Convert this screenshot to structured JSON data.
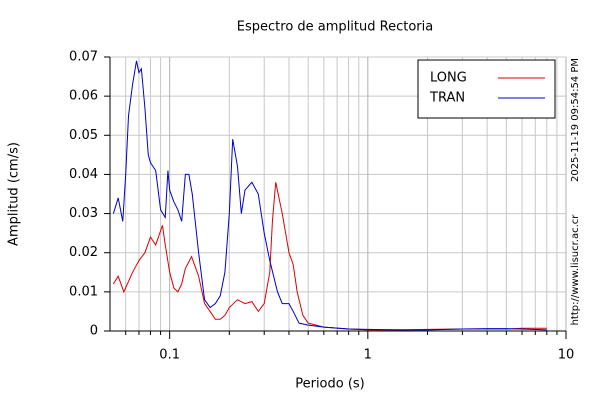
{
  "chart_data": {
    "type": "line",
    "title": "Espectro de amplitud Rectoria",
    "xlabel": "Periodo (s)",
    "ylabel": "Amplitud (cm/s)",
    "xlog": true,
    "grid": true,
    "minor_grid": true,
    "legend": "upper right",
    "xlim": [
      0.05,
      10
    ],
    "xticks": [
      0.1,
      1,
      10
    ],
    "ylim": [
      0,
      0.07
    ],
    "yticks": [
      0,
      0.01,
      0.02,
      0.03,
      0.04,
      0.05,
      0.06,
      0.07
    ],
    "annotations": [
      "2025-11-19 09:54:54 PM",
      "http://www.lisucr.ac.cr"
    ],
    "series": [
      {
        "name": "LONG",
        "color": "#dd0000",
        "x": [
          0.052,
          0.055,
          0.0587,
          0.065,
          0.07,
          0.075,
          0.08,
          0.085,
          0.092,
          0.095,
          0.1,
          0.105,
          0.11,
          0.115,
          0.12,
          0.129,
          0.14,
          0.15,
          0.16,
          0.17,
          0.18,
          0.19,
          0.2,
          0.22,
          0.24,
          0.26,
          0.28,
          0.3,
          0.32,
          0.33,
          0.343,
          0.37,
          0.4,
          0.42,
          0.44,
          0.47,
          0.5,
          0.6,
          0.8,
          1,
          1.5,
          2,
          3,
          4,
          5,
          6,
          8
        ],
        "values": [
          0.012,
          0.014,
          0.01,
          0.015,
          0.018,
          0.02,
          0.024,
          0.022,
          0.027,
          0.022,
          0.015,
          0.011,
          0.01,
          0.012,
          0.016,
          0.019,
          0.014,
          0.007,
          0.005,
          0.003,
          0.003,
          0.004,
          0.006,
          0.008,
          0.007,
          0.0075,
          0.005,
          0.007,
          0.015,
          0.028,
          0.038,
          0.03,
          0.02,
          0.017,
          0.01,
          0.004,
          0.002,
          0.001,
          0.0005,
          0.0003,
          0.0003,
          0.0004,
          0.0005,
          0.0005,
          0.0005,
          0.0007,
          0.0007
        ]
      },
      {
        "name": "TRAN",
        "color": "#0000cc",
        "x": [
          0.052,
          0.055,
          0.058,
          0.06,
          0.062,
          0.065,
          0.068,
          0.07,
          0.072,
          0.075,
          0.078,
          0.08,
          0.085,
          0.09,
          0.095,
          0.098,
          0.1,
          0.105,
          0.11,
          0.115,
          0.12,
          0.125,
          0.13,
          0.14,
          0.15,
          0.16,
          0.17,
          0.18,
          0.19,
          0.2,
          0.208,
          0.22,
          0.23,
          0.24,
          0.26,
          0.28,
          0.3,
          0.32,
          0.35,
          0.37,
          0.4,
          0.42,
          0.45,
          0.5,
          0.6,
          0.8,
          1,
          1.5,
          2,
          3,
          4,
          5,
          6,
          8
        ],
        "values": [
          0.03,
          0.034,
          0.028,
          0.04,
          0.055,
          0.063,
          0.069,
          0.066,
          0.067,
          0.057,
          0.045,
          0.043,
          0.041,
          0.031,
          0.029,
          0.041,
          0.036,
          0.033,
          0.031,
          0.028,
          0.04,
          0.04,
          0.035,
          0.02,
          0.008,
          0.006,
          0.007,
          0.009,
          0.015,
          0.03,
          0.049,
          0.042,
          0.03,
          0.036,
          0.038,
          0.035,
          0.025,
          0.018,
          0.01,
          0.007,
          0.007,
          0.005,
          0.002,
          0.0015,
          0.001,
          0.0005,
          0.0004,
          0.0003,
          0.0003,
          0.0005,
          0.0006,
          0.0006,
          0.0005,
          0.0003
        ]
      }
    ]
  }
}
